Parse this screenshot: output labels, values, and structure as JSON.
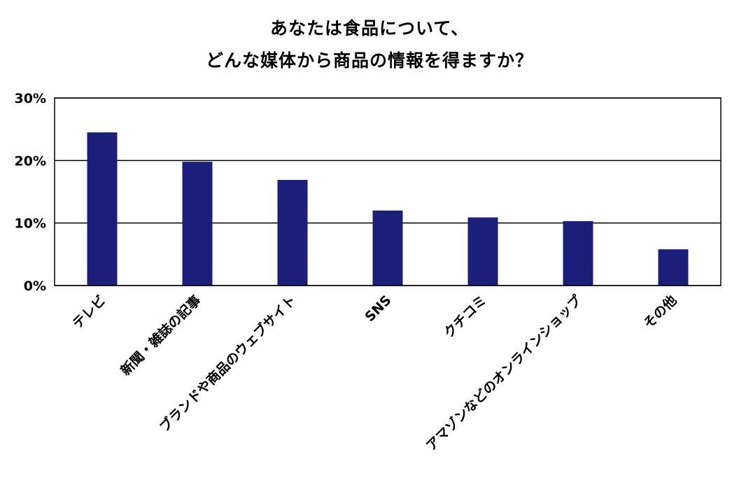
{
  "chart_data": {
    "type": "bar",
    "title_lines": [
      "あなたは食品について、",
      "どんな媒体から商品の情報を得ますか？"
    ],
    "categories": [
      "テレビ",
      "新聞・雑誌の記事",
      "ブランドや商品のウェブサイト",
      "SNS",
      "クチコミ",
      "アマゾンなどのオンラインショップ",
      "その他"
    ],
    "values": [
      24.5,
      19.8,
      16.9,
      12.0,
      10.9,
      10.3,
      5.8
    ],
    "ylim": [
      0,
      30
    ],
    "yticks": [
      0,
      10,
      20,
      30
    ],
    "ytick_labels": [
      "0%",
      "10%",
      "20%",
      "30%"
    ],
    "grid": true,
    "legend": "none",
    "bar_color": "#1b1f7a",
    "grid_color": "#000000"
  }
}
